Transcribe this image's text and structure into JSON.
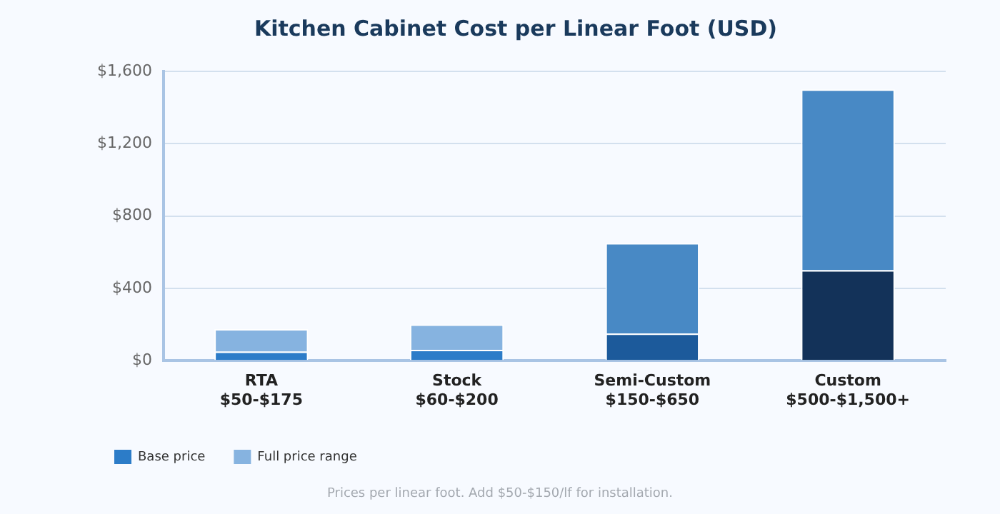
{
  "chart_data": {
    "type": "bar",
    "title": "Kitchen Cabinet Cost per Linear Foot (USD)",
    "stacked": true,
    "categories": [
      "RTA\n$50-$175",
      "Stock\n$60-$200",
      "Semi-Custom\n$150-$650",
      "Custom\n$500-$1,500+"
    ],
    "series": [
      {
        "name": "Base price",
        "color": "#2c7cc8",
        "colors": [
          "#2c7cc8",
          "#2c7cc8",
          "#1c5a9b",
          "#133259"
        ],
        "values": [
          50,
          60,
          150,
          500
        ]
      },
      {
        "name": "Full price range",
        "color": "#86b3e0",
        "colors": [
          "#86b3e0",
          "#86b3e0",
          "#4889c5",
          "#4889c5"
        ],
        "values": [
          125,
          140,
          500,
          1000
        ]
      }
    ],
    "ylim": [
      0,
      1600
    ],
    "yticks": [
      {
        "value": 0,
        "label": "$0"
      },
      {
        "value": 400,
        "label": "$400"
      },
      {
        "value": 800,
        "label": "$800"
      },
      {
        "value": 1200,
        "label": "$1,200"
      },
      {
        "value": 1600,
        "label": "$1,600"
      }
    ],
    "grid": "y",
    "legend": "bottom left",
    "annotations": [
      "Prices per linear foot. Add $50-$150/lf for installation."
    ]
  }
}
